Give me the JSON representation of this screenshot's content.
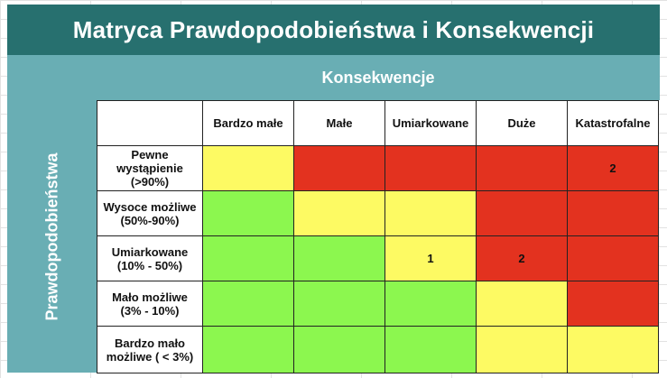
{
  "title": "Matryca Prawdopodobieństwa i Konsekwencji",
  "axis": {
    "consequences_label": "Konsekwencje",
    "probability_label": "Prawdopodobieństwa"
  },
  "columns": [
    "Bardzo małe",
    "Małe",
    "Umiarkowane",
    "Duże",
    "Katastrofalne"
  ],
  "rows": [
    {
      "label": "Pewne wystąpienie (>90%)",
      "cells": [
        {
          "color": "yellow",
          "value": ""
        },
        {
          "color": "red",
          "value": ""
        },
        {
          "color": "red",
          "value": ""
        },
        {
          "color": "red",
          "value": ""
        },
        {
          "color": "red",
          "value": "2"
        }
      ]
    },
    {
      "label": "Wysoce możliwe (50%-90%)",
      "cells": [
        {
          "color": "green",
          "value": ""
        },
        {
          "color": "yellow",
          "value": ""
        },
        {
          "color": "yellow",
          "value": ""
        },
        {
          "color": "red",
          "value": ""
        },
        {
          "color": "red",
          "value": ""
        }
      ]
    },
    {
      "label": "Umiarkowane (10% - 50%)",
      "cells": [
        {
          "color": "green",
          "value": ""
        },
        {
          "color": "green",
          "value": ""
        },
        {
          "color": "yellow",
          "value": "1"
        },
        {
          "color": "red",
          "value": "2"
        },
        {
          "color": "red",
          "value": ""
        }
      ]
    },
    {
      "label": "Mało możliwe (3% - 10%)",
      "cells": [
        {
          "color": "green",
          "value": ""
        },
        {
          "color": "green",
          "value": ""
        },
        {
          "color": "green",
          "value": ""
        },
        {
          "color": "yellow",
          "value": ""
        },
        {
          "color": "red",
          "value": ""
        }
      ]
    },
    {
      "label": "Bardzo mało możliwe ( < 3%)",
      "cells": [
        {
          "color": "green",
          "value": ""
        },
        {
          "color": "green",
          "value": ""
        },
        {
          "color": "green",
          "value": ""
        },
        {
          "color": "yellow",
          "value": ""
        },
        {
          "color": "yellow",
          "value": ""
        }
      ]
    }
  ],
  "colors": {
    "title_bg": "#27706f",
    "band_bg": "#69aeb4",
    "green": "#8cf74f",
    "yellow": "#fdfa63",
    "red": "#e3321f"
  }
}
